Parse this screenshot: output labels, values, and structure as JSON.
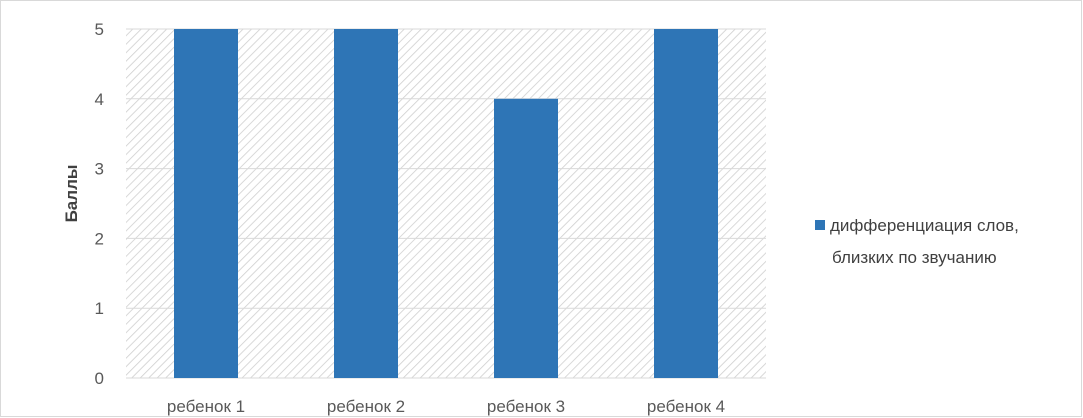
{
  "chart_data": {
    "type": "bar",
    "categories": [
      "ребенок 1",
      "ребенок 2",
      "ребенок 3",
      "ребенок 4"
    ],
    "series": [
      {
        "name": "дифференциация слов, близких по звучанию",
        "values": [
          5,
          5,
          4,
          5
        ],
        "color": "#2e75b6"
      }
    ],
    "xlabel": "",
    "ylabel": "Баллы",
    "ylim": [
      0,
      5
    ],
    "yticks": [
      "0",
      "1",
      "2",
      "3",
      "4",
      "5"
    ],
    "grid": true,
    "plot_background": "hatched light gray diagonal pattern",
    "legend_position": "right",
    "legend": {
      "line1": "дифференциация слов,",
      "line2": "близких по звучанию"
    }
  }
}
